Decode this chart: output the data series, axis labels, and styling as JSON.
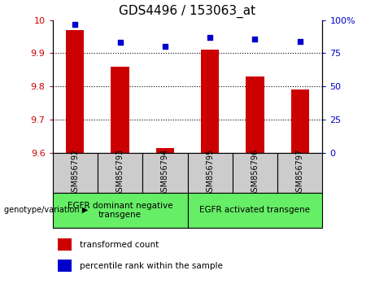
{
  "title": "GDS4496 / 153063_at",
  "samples": [
    "GSM856792",
    "GSM856793",
    "GSM856794",
    "GSM856795",
    "GSM856796",
    "GSM856797"
  ],
  "bar_values": [
    9.97,
    9.86,
    9.615,
    9.91,
    9.83,
    9.79
  ],
  "scatter_values": [
    97,
    83,
    80,
    87,
    86,
    84
  ],
  "ylim_left": [
    9.6,
    10.0
  ],
  "ylim_right": [
    0,
    100
  ],
  "yticks_left": [
    9.6,
    9.7,
    9.8,
    9.9,
    10.0
  ],
  "yticks_right": [
    0,
    25,
    50,
    75,
    100
  ],
  "bar_color": "#cc0000",
  "scatter_color": "#0000cc",
  "group1_label": "EGFR dominant negative\ntransgene",
  "group2_label": "EGFR activated transgene",
  "group1_indices": [
    0,
    1,
    2
  ],
  "group2_indices": [
    3,
    4,
    5
  ],
  "group_bg_color": "#66ee66",
  "sample_bg_color": "#cccccc",
  "legend_bar_label": "transformed count",
  "legend_scatter_label": "percentile rank within the sample",
  "left_label": "genotype/variation",
  "ylabel_left_color": "#cc0000",
  "ylabel_right_color": "#0000cc",
  "grid_lines": [
    9.7,
    9.8,
    9.9
  ],
  "bar_width": 0.4,
  "title_fontsize": 11,
  "tick_fontsize": 8,
  "sample_fontsize": 7,
  "group_fontsize": 7.5,
  "legend_fontsize": 7.5
}
